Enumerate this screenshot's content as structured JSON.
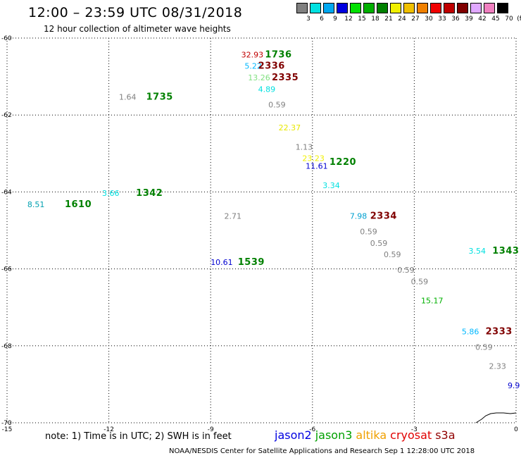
{
  "header": {
    "title": "12:00 – 23:59 UTC 08/31/2018",
    "subtitle": "12 hour collection of altimeter wave heights"
  },
  "colorscale": {
    "labels": [
      "3",
      "6",
      "9",
      "12",
      "15",
      "18",
      "21",
      "24",
      "27",
      "30",
      "33",
      "36",
      "39",
      "42",
      "45",
      "70"
    ],
    "colors": [
      "#808080",
      "#00e0e0",
      "#00a8f0",
      "#0000e0",
      "#00e000",
      "#00b000",
      "#008000",
      "#f0f000",
      "#f0c000",
      "#f08000",
      "#f00000",
      "#c00000",
      "#800000",
      "#e0a8ff",
      "#f080c0",
      "#000000"
    ],
    "unit": "(ft)"
  },
  "axes": {
    "y_labels": [
      "-60",
      "-62",
      "-64",
      "-66",
      "-68",
      "-70"
    ],
    "x_labels": [
      "-15",
      "-12",
      "-9",
      "-6",
      "-3",
      "0"
    ]
  },
  "observations": [
    {
      "text": "32.93",
      "color": "#c00000",
      "lon": -8.1,
      "lat": -60.5
    },
    {
      "text": "5.22",
      "color": "#00b8ff",
      "lon": -8.0,
      "lat": -60.8
    },
    {
      "text": "13.26",
      "color": "#80e080",
      "lon": -7.9,
      "lat": -61.1
    },
    {
      "text": "4.89",
      "color": "#00e0e0",
      "lon": -7.6,
      "lat": -61.4
    },
    {
      "text": "0.59",
      "color": "#808080",
      "lon": -7.3,
      "lat": -61.8
    },
    {
      "text": "1.64",
      "color": "#808080",
      "lon": -11.7,
      "lat": -61.6
    },
    {
      "text": "22.37",
      "color": "#e8e800",
      "lon": -7.0,
      "lat": -62.4
    },
    {
      "text": "1.13",
      "color": "#808080",
      "lon": -6.5,
      "lat": -62.9
    },
    {
      "text": "23.23",
      "color": "#f0f000",
      "lon": -6.3,
      "lat": -63.2
    },
    {
      "text": "11.61",
      "color": "#0000d0",
      "lon": -6.2,
      "lat": -63.4
    },
    {
      "text": "3.34",
      "color": "#00e0e0",
      "lon": -5.7,
      "lat": -63.9
    },
    {
      "text": "8.51",
      "color": "#00a0b0",
      "lon": -14.4,
      "lat": -64.4
    },
    {
      "text": "3.66",
      "color": "#00e0e0",
      "lon": -12.2,
      "lat": -64.1
    },
    {
      "text": "2.71",
      "color": "#808080",
      "lon": -8.6,
      "lat": -64.7
    },
    {
      "text": "7.98",
      "color": "#00a0d0",
      "lon": -4.9,
      "lat": -64.7
    },
    {
      "text": "0.59",
      "color": "#808080",
      "lon": -4.6,
      "lat": -65.1
    },
    {
      "text": "0.59",
      "color": "#808080",
      "lon": -4.3,
      "lat": -65.4
    },
    {
      "text": "0.59",
      "color": "#808080",
      "lon": -3.9,
      "lat": -65.7
    },
    {
      "text": "0.59",
      "color": "#808080",
      "lon": -3.5,
      "lat": -66.1
    },
    {
      "text": "0.59",
      "color": "#808080",
      "lon": -3.1,
      "lat": -66.4
    },
    {
      "text": "3.54",
      "color": "#00e0e0",
      "lon": -1.4,
      "lat": -65.6
    },
    {
      "text": "10.61",
      "color": "#0000d0",
      "lon": -9.0,
      "lat": -65.9
    },
    {
      "text": "15.17",
      "color": "#00b000",
      "lon": -2.8,
      "lat": -66.9
    },
    {
      "text": "5.86",
      "color": "#00b8ff",
      "lon": -1.6,
      "lat": -67.7
    },
    {
      "text": "0.59",
      "color": "#808080",
      "lon": -1.2,
      "lat": -68.1
    },
    {
      "text": "2.33",
      "color": "#808080",
      "lon": -0.8,
      "lat": -68.6
    },
    {
      "text": "9.9",
      "color": "#0000d0",
      "lon": -0.25,
      "lat": -69.1
    }
  ],
  "passes": [
    {
      "text": "1736",
      "color": "#008000",
      "lon": -7.4,
      "lat": -60.5
    },
    {
      "text": "2336",
      "color": "#800000",
      "lon": -7.6,
      "lat": -60.8
    },
    {
      "text": "2335",
      "color": "#800000",
      "lon": -7.2,
      "lat": -61.1
    },
    {
      "text": "1735",
      "color": "#008000",
      "lon": -10.9,
      "lat": -61.6
    },
    {
      "text": "1220",
      "color": "#008000",
      "lon": -5.5,
      "lat": -63.3
    },
    {
      "text": "1610",
      "color": "#008000",
      "lon": -13.3,
      "lat": -64.4
    },
    {
      "text": "1342",
      "color": "#008000",
      "lon": -11.2,
      "lat": -64.1
    },
    {
      "text": "2334",
      "color": "#800000",
      "lon": -4.3,
      "lat": -64.7
    },
    {
      "text": "1343",
      "color": "#008000",
      "lon": -0.7,
      "lat": -65.6
    },
    {
      "text": "1539",
      "color": "#008000",
      "lon": -8.2,
      "lat": -65.9
    },
    {
      "text": "2333",
      "color": "#800000",
      "lon": -0.9,
      "lat": -67.7
    }
  ],
  "note": "note: 1) Time is in UTC; 2) SWH is in feet",
  "satellites": [
    {
      "name": "jason2",
      "color": "#0000e0"
    },
    {
      "name": "jason3",
      "color": "#00a000"
    },
    {
      "name": "altika",
      "color": "#f0a000"
    },
    {
      "name": "cryosat",
      "color": "#e00000"
    },
    {
      "name": "s3a",
      "color": "#900000"
    }
  ],
  "footer": "NOAA/NESDIS Center for Satellite Applications and Research     Sep  1 12:28:00 UTC 2018"
}
